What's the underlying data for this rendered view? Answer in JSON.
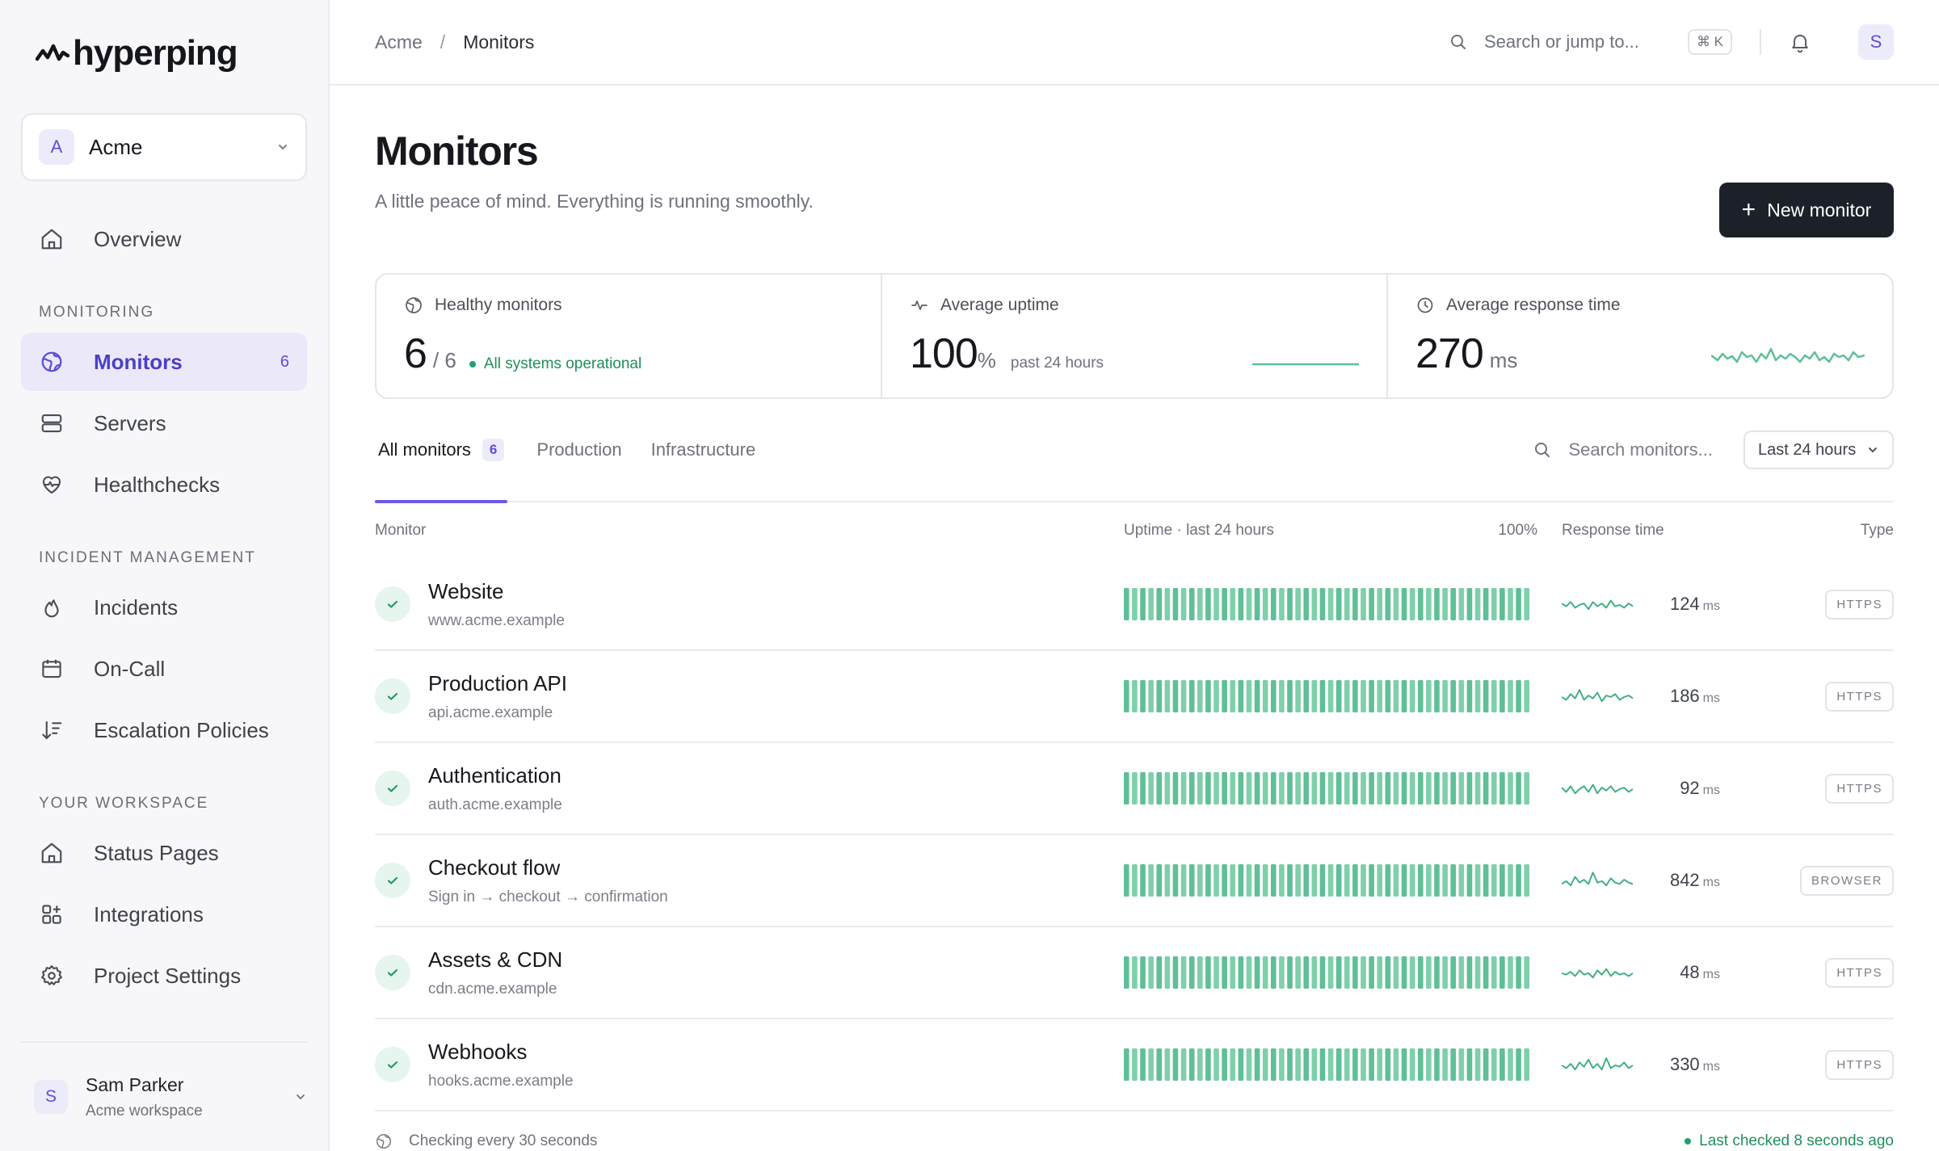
{
  "brand": {
    "name": "hyperping"
  },
  "workspace": {
    "initial": "A",
    "name": "Acme"
  },
  "sidebar": {
    "overview": "Overview",
    "sections": {
      "monitoring": "MONITORING",
      "incident": "INCIDENT MANAGEMENT",
      "workspace": "YOUR WORKSPACE"
    },
    "items": [
      {
        "label": "Monitors",
        "count": "6"
      },
      {
        "label": "Servers"
      },
      {
        "label": "Healthchecks"
      },
      {
        "label": "Incidents"
      },
      {
        "label": "On-Call"
      },
      {
        "label": "Escalation Policies"
      },
      {
        "label": "Status Pages"
      },
      {
        "label": "Integrations"
      },
      {
        "label": "Project Settings"
      }
    ]
  },
  "user": {
    "initial": "S",
    "name": "Sam Parker",
    "workspace": "Acme workspace"
  },
  "topbar": {
    "breadcrumb": [
      "Acme",
      "Monitors"
    ],
    "search_placeholder": "Search or jump to...",
    "shortcut": "⌘ K",
    "avatar": "S"
  },
  "page": {
    "title": "Monitors",
    "subtitle": "A little peace of mind. Everything is running smoothly.",
    "new_button": "New monitor"
  },
  "stats": {
    "healthy": {
      "label": "Healthy monitors",
      "value": "6",
      "total": "/ 6",
      "note": "All systems operational"
    },
    "uptime": {
      "label": "Average uptime",
      "value": "100",
      "unit": "%",
      "note": "past 24 hours"
    },
    "response": {
      "label": "Average response time",
      "value": "270",
      "unit": "ms"
    }
  },
  "tabs": {
    "items": [
      {
        "label": "All monitors",
        "count": "6"
      },
      {
        "label": "Production"
      },
      {
        "label": "Infrastructure"
      }
    ],
    "search_placeholder": "Search monitors...",
    "range": "Last 24 hours"
  },
  "table": {
    "headers": {
      "monitor": "Monitor",
      "uptime": "Uptime · last 24 hours",
      "uptime_pct": "100%",
      "response": "Response time",
      "type": "Type"
    },
    "rows": [
      {
        "name": "Website",
        "sub": "www.acme.example",
        "response": "124",
        "unit": "ms",
        "type": "HTTPS"
      },
      {
        "name": "Production API",
        "sub": "api.acme.example",
        "response": "186",
        "unit": "ms",
        "type": "HTTPS"
      },
      {
        "name": "Authentication",
        "sub": "auth.acme.example",
        "response": "92",
        "unit": "ms",
        "type": "HTTPS"
      },
      {
        "name": "Checkout flow",
        "sub": "Sign in → checkout → confirmation",
        "response": "842",
        "unit": "ms",
        "type": "BROWSER"
      },
      {
        "name": "Assets & CDN",
        "sub": "cdn.acme.example",
        "response": "48",
        "unit": "ms",
        "type": "HTTPS"
      },
      {
        "name": "Webhooks",
        "sub": "hooks.acme.example",
        "response": "330",
        "unit": "ms",
        "type": "HTTPS"
      }
    ]
  },
  "footer": {
    "interval": "Checking every 30 seconds",
    "last_checked": "Last checked 8 seconds ago"
  },
  "colors": {
    "accent": "#6a5ae0",
    "success": "#22a06b",
    "bar": "#5fbf97",
    "dark_button": "#1c2129"
  }
}
